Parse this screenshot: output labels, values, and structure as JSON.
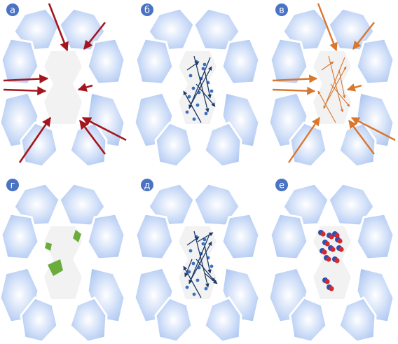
{
  "colors": {
    "background": "#ffffff",
    "cell_edge": "#a9c4f2",
    "cell_center": "#ffffff",
    "center_cell": "#f2f2f2",
    "label_badge": "#4a73c4",
    "label_text": "#ffffff",
    "arrow_red": "#a4161e",
    "arrow_orange": "#d8772e",
    "arrow_navy": "#1e3a63",
    "dot_blue": "#3a6fc2",
    "dot_navy": "#1e3a63",
    "patch_green": "#6aad3d",
    "cluster_red": "#d32a2a",
    "cluster_blue": "#2f4fb0"
  },
  "panels": [
    {
      "label": "а",
      "icon": "external-red-arrows"
    },
    {
      "label": "б",
      "icon": "internal-navy-arrows-and-dots"
    },
    {
      "label": "в",
      "icon": "external-and-internal-orange-arrows"
    },
    {
      "label": "г",
      "icon": "green-patches"
    },
    {
      "label": "д",
      "icon": "internal-navy-arrows-and-dots"
    },
    {
      "label": "е",
      "icon": "red-blue-clusters"
    }
  ]
}
